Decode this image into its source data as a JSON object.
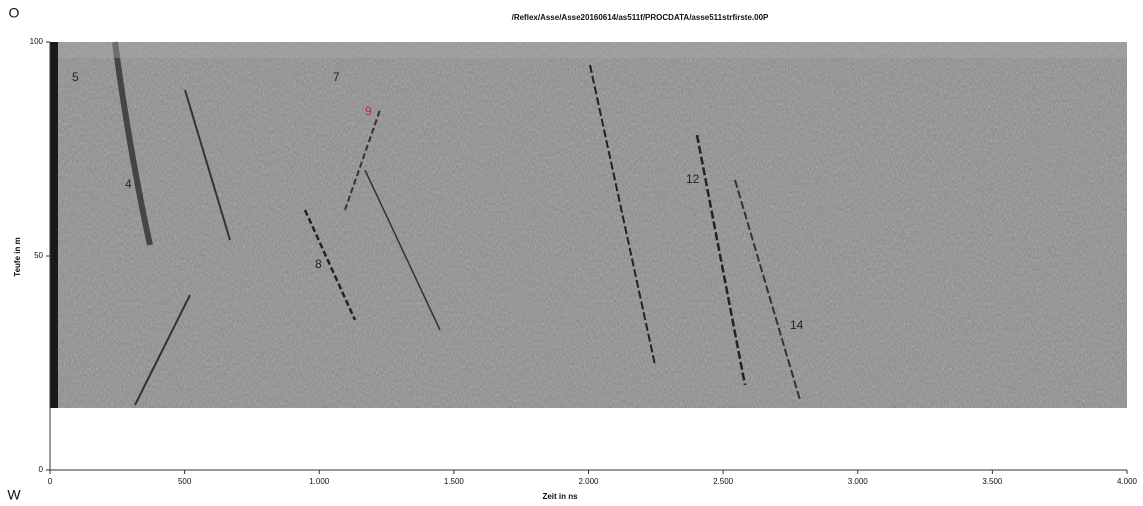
{
  "chart_data": {
    "type": "radargram",
    "title": "/Reflex/Asse/Asse20160614/as511f/PROCDATA/asse511strfirste.00P",
    "x_label": "Zeit in ns",
    "y_label": "Teufe in m",
    "corner_top": "O",
    "corner_bottom": "W",
    "xlim": [
      0,
      4000
    ],
    "xticks": [
      0,
      500,
      {
        "value": 1000,
        "label": "1.000"
      },
      {
        "value": 1500,
        "label": "1.500"
      },
      {
        "value": 2000,
        "label": "2.000"
      },
      {
        "value": 2500,
        "label": "2.500"
      },
      {
        "value": 3000,
        "label": "3.000"
      },
      {
        "value": 3500,
        "label": "3.500"
      },
      {
        "value": 4000,
        "label": "4.000"
      }
    ],
    "ylim": [
      0,
      100
    ],
    "yticks": [
      0,
      50,
      100
    ],
    "annotations": [
      "5",
      "7",
      "9",
      "4",
      "8",
      "12",
      "14"
    ]
  }
}
